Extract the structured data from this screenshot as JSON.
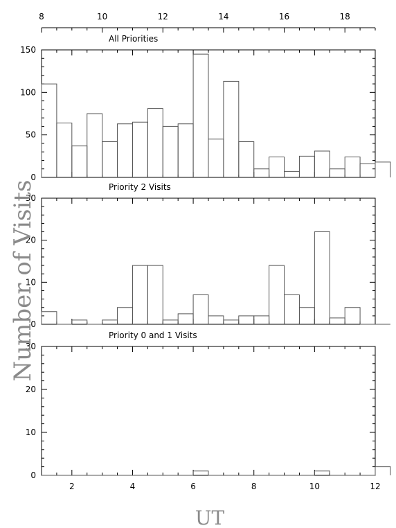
{
  "chart_data": {
    "type": "histogram",
    "ylabel": "Number of Visits",
    "xlabel": "UT",
    "top_axis": {
      "label": "",
      "range": [
        8,
        19
      ],
      "ticks": [
        "8",
        "10",
        "12",
        "14",
        "16",
        "18"
      ],
      "tick_values": [
        8,
        10,
        12,
        14,
        16,
        18
      ]
    },
    "bottom_axis": {
      "range": [
        1,
        12
      ],
      "ticks": [
        "2",
        "4",
        "6",
        "8",
        "10",
        "12"
      ],
      "tick_values": [
        2,
        4,
        6,
        8,
        10,
        12
      ]
    },
    "bins": {
      "start": 1,
      "width": 0.5
    },
    "panels": [
      {
        "title": "All Priorities",
        "ylim": [
          0,
          150
        ],
        "yticks": [
          "0",
          "50",
          "100",
          "150"
        ],
        "ytick_values": [
          0,
          50,
          100,
          150
        ],
        "values": [
          110,
          64,
          37,
          75,
          42,
          63,
          65,
          81,
          60,
          63,
          145,
          45,
          113,
          42,
          10,
          24,
          7,
          25,
          31,
          10,
          24,
          16,
          18
        ]
      },
      {
        "title": "Priority 2 Visits",
        "ylim": [
          0,
          30
        ],
        "yticks": [
          "0",
          "10",
          "20",
          "30"
        ],
        "ytick_values": [
          0,
          10,
          20,
          30
        ],
        "values": [
          3,
          0,
          1,
          0,
          1,
          4,
          14,
          14,
          1,
          2.5,
          7,
          2,
          1,
          2,
          2,
          14,
          7,
          4,
          22,
          1.5,
          4,
          0,
          0
        ]
      },
      {
        "title": "Priority 0 and 1 Visits",
        "ylim": [
          0,
          30
        ],
        "yticks": [
          "0",
          "10",
          "20",
          "30"
        ],
        "ytick_values": [
          0,
          10,
          20,
          30
        ],
        "values": [
          0,
          0,
          0,
          0,
          0,
          0,
          0,
          0,
          0,
          0,
          1,
          0,
          0,
          0,
          0,
          0,
          0,
          0,
          1,
          0,
          0,
          0,
          2
        ]
      }
    ],
    "grid": false,
    "legend": "none"
  }
}
